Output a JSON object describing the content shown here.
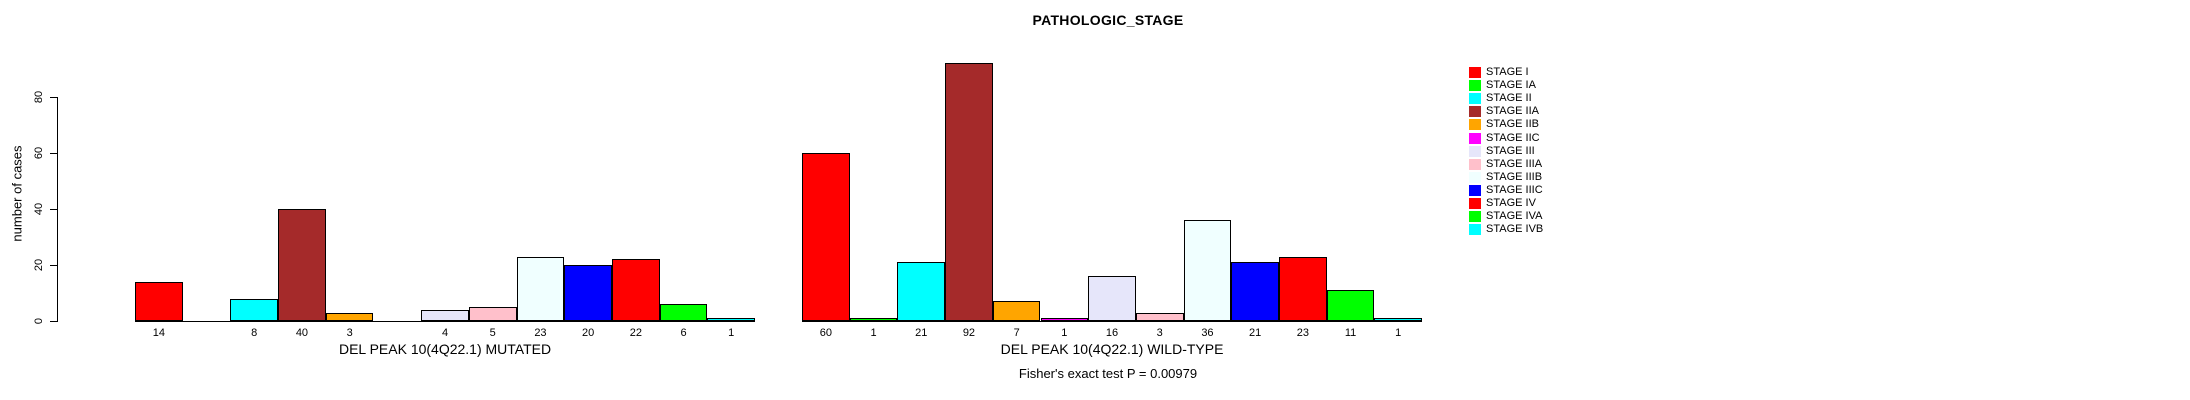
{
  "chart_data": {
    "type": "bar",
    "title": "PATHOLOGIC_STAGE",
    "ylabel": "number of cases",
    "footer": "Fisher's exact test P = 0.00979",
    "yticks": [
      0,
      20,
      40,
      60,
      80
    ],
    "ylim": [
      0,
      80
    ],
    "grid": false,
    "legend_position": "right",
    "legend": [
      {
        "label": "STAGE I",
        "color": "#FF0000"
      },
      {
        "label": "STAGE IA",
        "color": "#00FF00"
      },
      {
        "label": "STAGE II",
        "color": "#00FFFF"
      },
      {
        "label": "STAGE IIA",
        "color": "#A52A2A"
      },
      {
        "label": "STAGE IIB",
        "color": "#FFA500"
      },
      {
        "label": "STAGE IIC",
        "color": "#FF00FF"
      },
      {
        "label": "STAGE III",
        "color": "#E6E6FA"
      },
      {
        "label": "STAGE IIIA",
        "color": "#FFC0CB"
      },
      {
        "label": "STAGE IIIB",
        "color": "#F0FFFF"
      },
      {
        "label": "STAGE IIIC",
        "color": "#0000FF"
      },
      {
        "label": "STAGE IV",
        "color": "#FF0000"
      },
      {
        "label": "STAGE IVA",
        "color": "#00FF00"
      },
      {
        "label": "STAGE IVB",
        "color": "#00FFFF"
      }
    ],
    "groups": [
      {
        "label": "DEL PEAK 10(4Q22.1) MUTATED",
        "values": [
          14,
          0,
          8,
          40,
          3,
          0,
          4,
          5,
          23,
          20,
          22,
          6,
          1
        ],
        "bar_labels": [
          "14",
          "",
          "8",
          "40",
          "3",
          "",
          "4",
          "5",
          "23",
          "20",
          "22",
          "6",
          "1"
        ]
      },
      {
        "label": "DEL PEAK 10(4Q22.1) WILD-TYPE",
        "values": [
          60,
          1,
          21,
          92,
          7,
          1,
          16,
          3,
          36,
          21,
          23,
          11,
          1
        ],
        "bar_labels": [
          "60",
          "1",
          "21",
          "92",
          "7",
          "1",
          "16",
          "3",
          "36",
          "21",
          "23",
          "11",
          "1"
        ]
      }
    ]
  }
}
